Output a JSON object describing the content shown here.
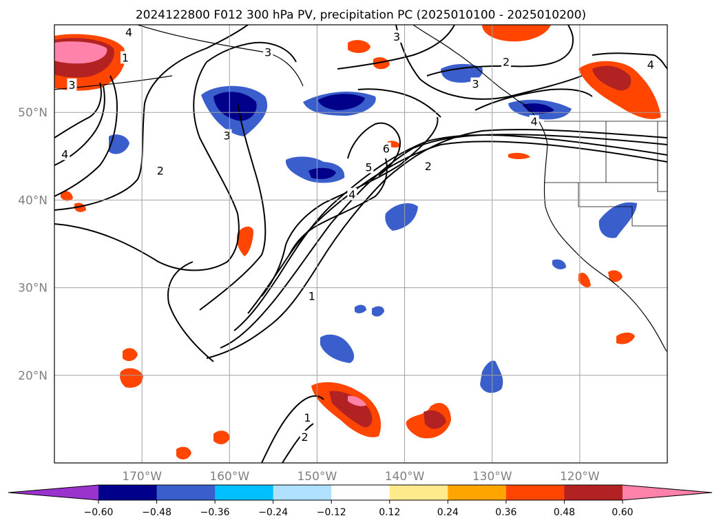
{
  "chart_data": {
    "type": "contour-map",
    "title": "2024122800 F012 300 hPa PV, precipitation PC (2025010100 - 2025010200)",
    "map": {
      "lon_range": [
        -180,
        -110
      ],
      "lat_range": [
        10,
        60
      ],
      "lat_ticks": [
        {
          "value": 20,
          "label": "20°N"
        },
        {
          "value": 30,
          "label": "30°N"
        },
        {
          "value": 40,
          "label": "40°N"
        },
        {
          "value": 50,
          "label": "50°N"
        }
      ],
      "lon_ticks": [
        {
          "value": -170,
          "label": "170°W"
        },
        {
          "value": -160,
          "label": "160°W"
        },
        {
          "value": -150,
          "label": "150°W"
        },
        {
          "value": -140,
          "label": "140°W"
        },
        {
          "value": -130,
          "label": "130°W"
        },
        {
          "value": -120,
          "label": "120°W"
        }
      ],
      "grid": true
    },
    "colorbar": {
      "orientation": "horizontal",
      "extend": "both",
      "colors": [
        "#9a32cd",
        "#00008b",
        "#3a5fcd",
        "#00bfff",
        "#b0e2ff",
        "#ffffff",
        "#ffeb8c",
        "#ffa500",
        "#ff4500",
        "#b22222",
        "#ff82ab"
      ],
      "boundaries": [
        -0.6,
        -0.48,
        -0.36,
        -0.24,
        -0.12,
        0.12,
        0.24,
        0.36,
        0.48,
        0.6
      ],
      "tick_labels": [
        "−0.60",
        "−0.48",
        "−0.36",
        "−0.24",
        "−0.12",
        "0.12",
        "0.24",
        "0.36",
        "0.48",
        "0.60"
      ]
    },
    "pv_contour_labels": [
      {
        "text": "1",
        "lon": -171.9,
        "lat": 56.2
      },
      {
        "text": "1",
        "lon": -150.6,
        "lat": 29.0
      },
      {
        "text": "1",
        "lon": -151.1,
        "lat": 15.1
      },
      {
        "text": "2",
        "lon": -167.9,
        "lat": 43.3
      },
      {
        "text": "2",
        "lon": -137.3,
        "lat": 43.8
      },
      {
        "text": "2",
        "lon": -151.4,
        "lat": 12.9
      },
      {
        "text": "2",
        "lon": -128.4,
        "lat": 55.7
      },
      {
        "text": "3",
        "lon": -178.0,
        "lat": 53.1
      },
      {
        "text": "3",
        "lon": -160.3,
        "lat": 47.3
      },
      {
        "text": "3",
        "lon": -155.6,
        "lat": 56.8
      },
      {
        "text": "3",
        "lon": -140.9,
        "lat": 58.6
      },
      {
        "text": "3",
        "lon": -131.9,
        "lat": 53.2
      },
      {
        "text": "4",
        "lon": -178.8,
        "lat": 45.2
      },
      {
        "text": "4",
        "lon": -146.0,
        "lat": 40.6
      },
      {
        "text": "4",
        "lon": -125.2,
        "lat": 48.9
      },
      {
        "text": "4",
        "lon": -171.5,
        "lat": 59.1
      },
      {
        "text": "4",
        "lon": -111.9,
        "lat": 55.4
      },
      {
        "text": "5",
        "lon": -144.1,
        "lat": 43.7
      },
      {
        "text": "6",
        "lon": -142.1,
        "lat": 45.8
      }
    ]
  }
}
